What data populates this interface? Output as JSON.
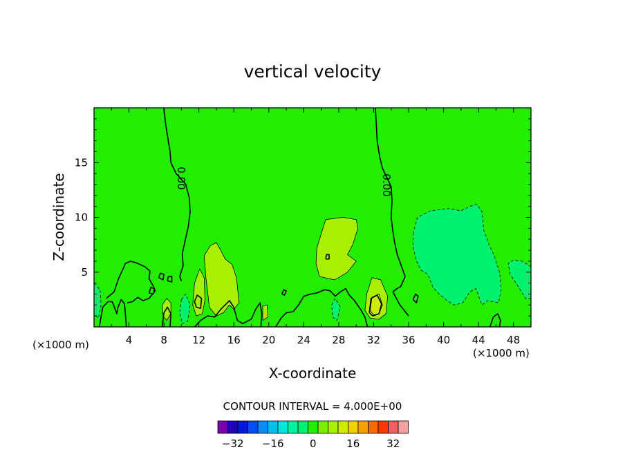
{
  "chart_data": {
    "type": "heatmap",
    "title": "vertical velocity",
    "xlabel": "X-coordinate",
    "ylabel": "Z-coordinate",
    "x_unit": "(×1000 m)",
    "x_unit_right": "(×1000 m)",
    "xlim": [
      0,
      50
    ],
    "ylim": [
      0,
      20
    ],
    "x_ticks": [
      4,
      8,
      12,
      16,
      20,
      24,
      28,
      32,
      36,
      40,
      44,
      48
    ],
    "y_ticks": [
      5,
      10,
      15
    ],
    "contour_interval_text": "CONTOUR INTERVAL = 4.000E+00",
    "contour_label": "0.00",
    "background_level": 0,
    "colorbar": {
      "levels": [
        -36,
        -32,
        -28,
        -24,
        -20,
        -16,
        -12,
        -8,
        -4,
        0,
        4,
        8,
        12,
        16,
        20,
        24,
        28,
        32,
        36
      ],
      "colors": [
        "#7a00aa",
        "#2000b8",
        "#0018d8",
        "#0050ee",
        "#0a8cf4",
        "#00bef0",
        "#00e6d8",
        "#00f0a0",
        "#00f070",
        "#22ee00",
        "#7af000",
        "#a8f000",
        "#d0ea00",
        "#f0d000",
        "#f8a000",
        "#fa6a00",
        "#fa3800",
        "#f06060",
        "#f4a0a0"
      ],
      "tick_values": [
        -32,
        -16,
        0,
        16,
        32
      ]
    },
    "regions": [
      {
        "level": 8,
        "points": [
          [
            26,
            8.5
          ],
          [
            26.5,
            9.8
          ],
          [
            28.5,
            10
          ],
          [
            30,
            9.8
          ],
          [
            30.2,
            9
          ],
          [
            29.6,
            7.5
          ],
          [
            29,
            6.6
          ],
          [
            30,
            6
          ],
          [
            29,
            5
          ],
          [
            28,
            4.5
          ],
          [
            27.5,
            4.3
          ],
          [
            25.8,
            4.6
          ],
          [
            25.4,
            5.8
          ],
          [
            25.5,
            7.2
          ]
        ]
      },
      {
        "level": 8,
        "points": [
          [
            12.8,
            4.5
          ],
          [
            12.6,
            6.5
          ],
          [
            13.3,
            7.4
          ],
          [
            14,
            7.7
          ],
          [
            14.5,
            7
          ],
          [
            15,
            6.2
          ],
          [
            15.8,
            5.7
          ],
          [
            16.3,
            4.5
          ],
          [
            16.6,
            2.2
          ],
          [
            16,
            1.6
          ],
          [
            15.5,
            2
          ],
          [
            14.8,
            1.3
          ],
          [
            14,
            1
          ],
          [
            13.2,
            1.8
          ],
          [
            13,
            3.2
          ]
        ]
      },
      {
        "level": 8,
        "points": [
          [
            11.3,
            2
          ],
          [
            11.5,
            4
          ],
          [
            12.1,
            5.3
          ],
          [
            12.6,
            4.5
          ],
          [
            12.7,
            2.5
          ],
          [
            12.4,
            1.2
          ],
          [
            11.7,
            1
          ]
        ]
      },
      {
        "level": 8,
        "points": [
          [
            31,
            1.5
          ],
          [
            31.2,
            3
          ],
          [
            31.8,
            4.5
          ],
          [
            32.8,
            4.3
          ],
          [
            33.6,
            2.8
          ],
          [
            33.4,
            1.2
          ],
          [
            32.6,
            0.7
          ],
          [
            31.6,
            0.8
          ]
        ]
      },
      {
        "level": 12,
        "points": [
          [
            31.6,
            1.5
          ],
          [
            31.8,
            2.7
          ],
          [
            32.6,
            3
          ],
          [
            33,
            2
          ],
          [
            32.6,
            1.2
          ],
          [
            32,
            1.1
          ]
        ]
      },
      {
        "level": 8,
        "points": [
          [
            7.9,
            1
          ],
          [
            7.8,
            2
          ],
          [
            8.3,
            2.6
          ],
          [
            8.8,
            2.2
          ],
          [
            8.8,
            1.2
          ],
          [
            8.3,
            0.6
          ]
        ]
      },
      {
        "level": 8,
        "points": [
          [
            19.3,
            0.6
          ],
          [
            19.3,
            1.9
          ],
          [
            19.8,
            2
          ],
          [
            19.9,
            0.9
          ]
        ]
      },
      {
        "level": -4,
        "points": [
          [
            36.5,
            8.5
          ],
          [
            37,
            10
          ],
          [
            38.5,
            10.6
          ],
          [
            40.5,
            10.8
          ],
          [
            42,
            10.6
          ],
          [
            43,
            11
          ],
          [
            43.8,
            11.2
          ],
          [
            44.4,
            10.5
          ],
          [
            44.6,
            8.8
          ],
          [
            45.2,
            7.5
          ],
          [
            45.8,
            6.5
          ],
          [
            46.4,
            5
          ],
          [
            46.6,
            3.5
          ],
          [
            46.3,
            2.2
          ],
          [
            45,
            2.4
          ],
          [
            44.4,
            2
          ],
          [
            43.7,
            3.5
          ],
          [
            43,
            3.2
          ],
          [
            42.2,
            2.2
          ],
          [
            41.2,
            2
          ],
          [
            40.4,
            2.4
          ],
          [
            39.5,
            3
          ],
          [
            38.8,
            3.6
          ],
          [
            38.2,
            4.8
          ],
          [
            37.4,
            5.2
          ],
          [
            36.8,
            6.2
          ],
          [
            36.5,
            7.5
          ]
        ]
      },
      {
        "level": -4,
        "points": [
          [
            47.6,
            4.8
          ],
          [
            47.4,
            5.8
          ],
          [
            48,
            6.1
          ],
          [
            49,
            6
          ],
          [
            50,
            5.5
          ],
          [
            50,
            2.6
          ],
          [
            49.4,
            2.6
          ],
          [
            48.6,
            3.6
          ]
        ]
      },
      {
        "level": -4,
        "points": [
          [
            0,
            4
          ],
          [
            0.7,
            3.4
          ],
          [
            0.8,
            2
          ],
          [
            0.5,
            0.8
          ],
          [
            0,
            1.2
          ]
        ]
      },
      {
        "level": -4,
        "points": [
          [
            10,
            2.5
          ],
          [
            10.5,
            3
          ],
          [
            11,
            2
          ],
          [
            10.7,
            0.5
          ],
          [
            10.1,
            0.3
          ],
          [
            9.8,
            1.3
          ]
        ]
      },
      {
        "level": -4,
        "points": [
          [
            27.2,
            2
          ],
          [
            27.6,
            2.6
          ],
          [
            28.2,
            1.8
          ],
          [
            27.8,
            0.6
          ],
          [
            27.3,
            0.9
          ]
        ]
      }
    ],
    "zero_contours": [
      [
        [
          8,
          20
        ],
        [
          8.2,
          18.5
        ],
        [
          8.5,
          17
        ],
        [
          8.7,
          16
        ],
        [
          8.8,
          15
        ],
        [
          9.4,
          14
        ],
        [
          10.5,
          13
        ],
        [
          10.9,
          11.8
        ],
        [
          11,
          10.5
        ],
        [
          10.8,
          9.2
        ],
        [
          10.4,
          7.8
        ],
        [
          10.1,
          6.7
        ],
        [
          10.2,
          5.6
        ],
        [
          9.8,
          4.6
        ],
        [
          10,
          4.2
        ]
      ],
      [
        [
          32.2,
          20
        ],
        [
          32.3,
          18.5
        ],
        [
          32.4,
          17
        ],
        [
          32.7,
          15.5
        ],
        [
          33,
          14.5
        ],
        [
          34,
          12.8
        ],
        [
          34.1,
          11.5
        ],
        [
          34,
          10
        ],
        [
          34.2,
          8.7
        ],
        [
          34.4,
          7.7
        ],
        [
          34.7,
          6.6
        ],
        [
          35.2,
          5.5
        ],
        [
          35.6,
          4.6
        ],
        [
          35.1,
          3.7
        ],
        [
          34.5,
          3.4
        ],
        [
          34.2,
          3.2
        ],
        [
          35,
          2
        ],
        [
          36,
          1
        ]
      ],
      [
        [
          0.6,
          0
        ],
        [
          1,
          1.8
        ],
        [
          1.6,
          2.3
        ],
        [
          2.1,
          2.3
        ],
        [
          2.6,
          1.2
        ],
        [
          2.7,
          1.7
        ],
        [
          3.1,
          2.5
        ],
        [
          3.5,
          2.1
        ],
        [
          3.7,
          0
        ]
      ],
      [
        [
          1.4,
          2.6
        ],
        [
          2.3,
          3.2
        ],
        [
          2.8,
          4.4
        ],
        [
          3.6,
          5.8
        ],
        [
          4.2,
          6
        ],
        [
          5,
          5.8
        ],
        [
          5.8,
          5.5
        ],
        [
          6.4,
          5.1
        ],
        [
          6.3,
          4.4
        ],
        [
          6.8,
          3.7
        ],
        [
          7,
          3.3
        ],
        [
          6.3,
          2.6
        ],
        [
          5.6,
          2.4
        ],
        [
          5,
          2.7
        ],
        [
          4.4,
          2.3
        ],
        [
          3.8,
          2.2
        ]
      ],
      [
        [
          7.8,
          0
        ],
        [
          8,
          1.3
        ],
        [
          8.4,
          1.8
        ],
        [
          8.8,
          1.2
        ],
        [
          8.7,
          0
        ]
      ],
      [
        [
          11.5,
          2.3
        ],
        [
          11.8,
          2.9
        ],
        [
          12.3,
          2.6
        ],
        [
          12.2,
          1.7
        ],
        [
          11.7,
          1.8
        ],
        [
          11.5,
          2.3
        ]
      ],
      [
        [
          11.5,
          0
        ],
        [
          12.2,
          0.6
        ],
        [
          13,
          1
        ],
        [
          13.8,
          0.9
        ],
        [
          14.5,
          1.6
        ],
        [
          15,
          2
        ],
        [
          15.5,
          2.4
        ],
        [
          16,
          1.8
        ],
        [
          16.4,
          0.6
        ],
        [
          17,
          0.3
        ],
        [
          18,
          0.7
        ],
        [
          18.5,
          1.6
        ],
        [
          19,
          2.2
        ],
        [
          19.2,
          1.2
        ],
        [
          19.1,
          0
        ]
      ],
      [
        [
          20.8,
          0
        ],
        [
          21.4,
          0.8
        ],
        [
          22,
          1.3
        ],
        [
          22.8,
          1.4
        ],
        [
          23.4,
          2
        ],
        [
          24,
          2.8
        ],
        [
          24.8,
          3
        ],
        [
          25.5,
          3.1
        ],
        [
          26.4,
          3.4
        ],
        [
          27,
          3.3
        ],
        [
          27.6,
          2.8
        ],
        [
          28.2,
          3.2
        ],
        [
          28.8,
          3.5
        ],
        [
          29.2,
          2.9
        ],
        [
          29.8,
          2.4
        ],
        [
          30.5,
          1.6
        ],
        [
          31,
          0.9
        ],
        [
          31.3,
          0
        ]
      ],
      [
        [
          31.5,
          1.3
        ],
        [
          31.7,
          2.6
        ],
        [
          32.4,
          2.9
        ],
        [
          32.9,
          2.1
        ],
        [
          32.6,
          1.2
        ],
        [
          31.9,
          1
        ],
        [
          31.5,
          1.3
        ]
      ],
      [
        [
          45.3,
          0
        ],
        [
          45.7,
          0.9
        ],
        [
          46.2,
          1.2
        ],
        [
          46.5,
          0.6
        ],
        [
          46.4,
          0
        ]
      ],
      [
        [
          26.5,
          6.2
        ],
        [
          26.6,
          6.6
        ],
        [
          26.9,
          6.6
        ],
        [
          26.9,
          6.2
        ],
        [
          26.5,
          6.2
        ]
      ],
      [
        [
          7.4,
          4.5
        ],
        [
          7.6,
          4.9
        ],
        [
          8,
          4.8
        ],
        [
          7.9,
          4.3
        ],
        [
          7.4,
          4.5
        ]
      ],
      [
        [
          8.4,
          4.2
        ],
        [
          8.5,
          4.6
        ],
        [
          8.9,
          4.6
        ],
        [
          8.9,
          4.1
        ],
        [
          8.4,
          4.2
        ]
      ],
      [
        [
          6.3,
          3.1
        ],
        [
          6.5,
          3.6
        ],
        [
          6.9,
          3.5
        ],
        [
          6.8,
          3
        ],
        [
          6.3,
          3.1
        ]
      ],
      [
        [
          21.5,
          3
        ],
        [
          21.7,
          3.4
        ],
        [
          22,
          3.3
        ],
        [
          21.8,
          2.9
        ],
        [
          21.5,
          3
        ]
      ],
      [
        [
          36.5,
          2.5
        ],
        [
          36.8,
          3
        ],
        [
          37.1,
          2.8
        ],
        [
          36.9,
          2.2
        ],
        [
          36.5,
          2.5
        ]
      ]
    ]
  }
}
